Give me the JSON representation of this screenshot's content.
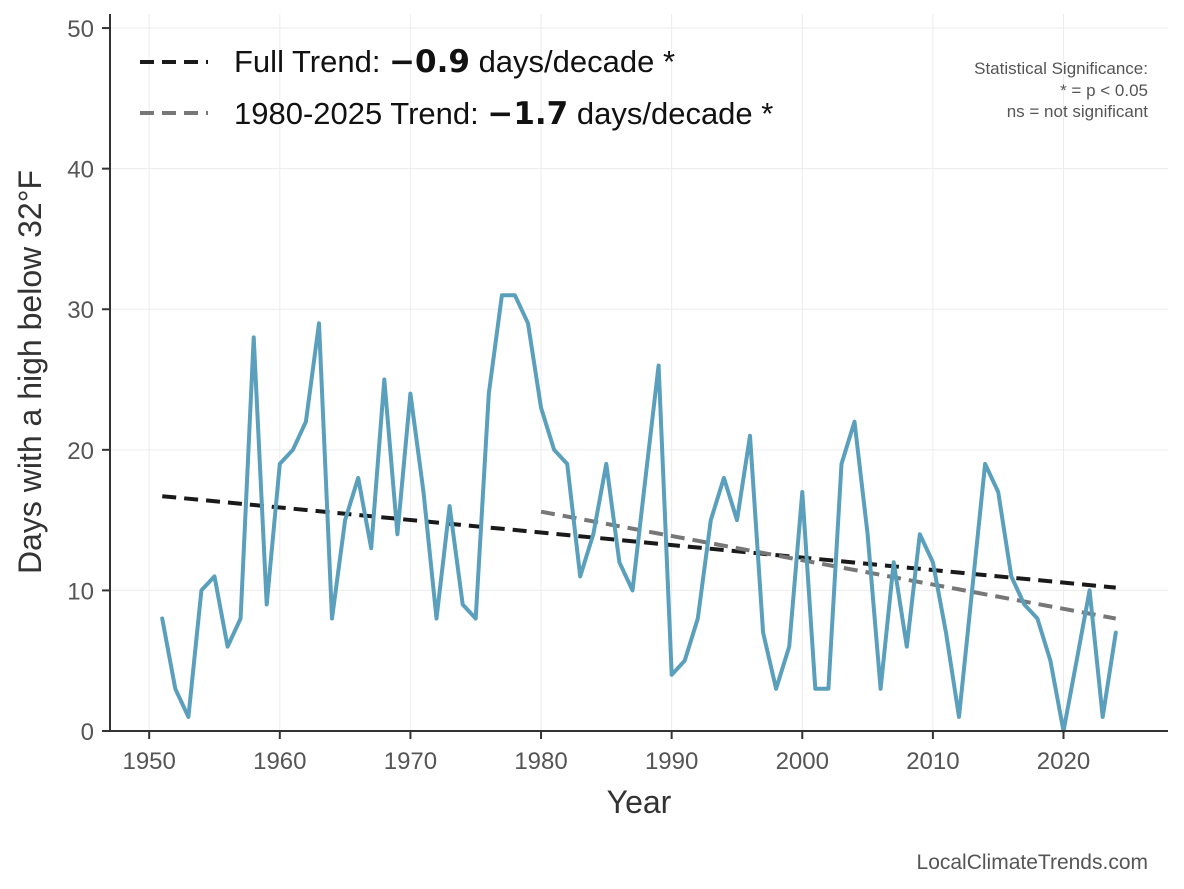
{
  "chart_data": {
    "type": "line",
    "xlabel": "Year",
    "ylabel": "Days with a high below 32°F",
    "xlim": [
      1947,
      2028
    ],
    "ylim": [
      0,
      51
    ],
    "grid": true,
    "legend_position": "top-left",
    "x_ticks": [
      1950,
      1960,
      1970,
      1980,
      1990,
      2000,
      2010,
      2020
    ],
    "y_ticks": [
      0,
      10,
      20,
      30,
      40,
      50
    ],
    "series": [
      {
        "name": "Days with a high below 32°F",
        "color": "#5a9fbc",
        "x": [
          1951,
          1952,
          1953,
          1954,
          1955,
          1956,
          1957,
          1958,
          1959,
          1960,
          1961,
          1962,
          1963,
          1964,
          1965,
          1966,
          1967,
          1968,
          1969,
          1970,
          1971,
          1972,
          1973,
          1974,
          1975,
          1976,
          1977,
          1978,
          1979,
          1980,
          1981,
          1982,
          1983,
          1984,
          1985,
          1986,
          1987,
          1988,
          1989,
          1990,
          1991,
          1992,
          1993,
          1994,
          1995,
          1996,
          1997,
          1998,
          1999,
          2000,
          2001,
          2002,
          2003,
          2004,
          2005,
          2006,
          2007,
          2008,
          2009,
          2010,
          2011,
          2012,
          2013,
          2014,
          2015,
          2016,
          2017,
          2018,
          2019,
          2020,
          2021,
          2022,
          2023,
          2024
        ],
        "values": [
          8,
          3,
          1,
          10,
          11,
          6,
          8,
          28,
          9,
          19,
          20,
          22,
          29,
          8,
          15,
          18,
          13,
          25,
          14,
          24,
          17,
          8,
          16,
          9,
          8,
          24,
          31,
          31,
          29,
          23,
          20,
          19,
          11,
          14,
          19,
          12,
          10,
          18,
          26,
          4,
          5,
          8,
          15,
          18,
          15,
          21,
          7,
          3,
          6,
          17,
          3,
          3,
          19,
          22,
          14,
          3,
          12,
          6,
          14,
          12,
          7,
          1,
          10,
          19,
          17,
          11,
          9,
          8,
          5,
          0,
          5,
          10,
          1,
          7
        ]
      }
    ],
    "trends": [
      {
        "name": "Full Trend",
        "label_prefix": "Full Trend: ",
        "value_label": "−0.9",
        "label_suffix": " days/decade *",
        "color": "#1a1a1a",
        "start": [
          1951,
          16.7
        ],
        "end": [
          2024,
          10.2
        ]
      },
      {
        "name": "1980-2025 Trend",
        "label_prefix": "1980-2025 Trend: ",
        "value_label": "−1.7",
        "label_suffix": " days/decade *",
        "color": "#777777",
        "start": [
          1980,
          15.6
        ],
        "end": [
          2024,
          8.0
        ]
      }
    ],
    "annotations": {
      "significance_title": "Statistical Significance:",
      "significance_line1": "* = p < 0.05",
      "significance_line2": "ns = not significant"
    },
    "source": "LocalClimateTrends.com"
  }
}
